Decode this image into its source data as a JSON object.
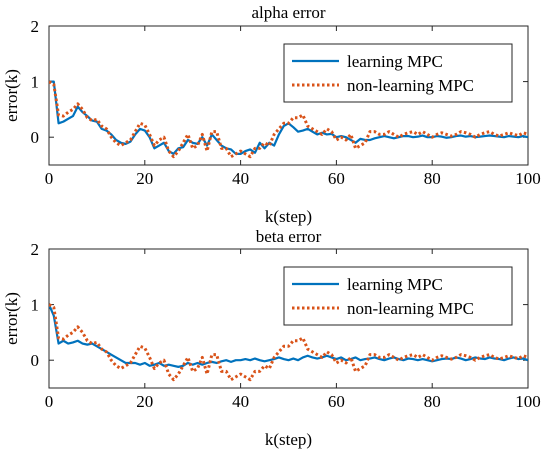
{
  "chart_data": [
    {
      "type": "line",
      "title": "alpha error",
      "xlabel": "k(step)",
      "ylabel": "error(k)",
      "xlim": [
        0,
        100
      ],
      "ylim": [
        -0.5,
        2
      ],
      "xticks": [
        "0",
        "20",
        "40",
        "60",
        "80",
        "100"
      ],
      "yticks": [
        "0",
        "1",
        "2"
      ],
      "grid": false,
      "legend": "top-right",
      "series": [
        {
          "name": "learning MPC",
          "color": "#0072BD",
          "style": "solid",
          "x": [
            0,
            1,
            2,
            3,
            4,
            5,
            6,
            7,
            8,
            9,
            10,
            11,
            12,
            13,
            14,
            15,
            16,
            17,
            18,
            19,
            20,
            21,
            22,
            23,
            24,
            25,
            26,
            27,
            28,
            29,
            30,
            31,
            32,
            33,
            34,
            35,
            36,
            37,
            38,
            39,
            40,
            41,
            42,
            43,
            44,
            45,
            46,
            47,
            48,
            49,
            50,
            51,
            52,
            53,
            54,
            55,
            56,
            57,
            58,
            59,
            60,
            61,
            62,
            63,
            64,
            65,
            66,
            67,
            68,
            69,
            70,
            71,
            72,
            73,
            74,
            75,
            76,
            77,
            78,
            79,
            80,
            81,
            82,
            83,
            84,
            85,
            86,
            87,
            88,
            89,
            90,
            91,
            92,
            93,
            94,
            95,
            96,
            97,
            98,
            99,
            100
          ],
          "y": [
            1.0,
            1.0,
            0.25,
            0.28,
            0.33,
            0.38,
            0.55,
            0.45,
            0.38,
            0.3,
            0.28,
            0.15,
            0.12,
            0.05,
            -0.05,
            -0.1,
            -0.12,
            -0.08,
            0.05,
            0.15,
            0.12,
            0.0,
            -0.2,
            -0.15,
            -0.1,
            -0.25,
            -0.3,
            -0.2,
            -0.18,
            -0.05,
            -0.1,
            -0.12,
            0.0,
            -0.15,
            0.05,
            -0.05,
            -0.15,
            -0.2,
            -0.22,
            -0.3,
            -0.3,
            -0.25,
            -0.22,
            -0.28,
            -0.1,
            -0.2,
            -0.1,
            -0.15,
            0.05,
            0.2,
            0.25,
            0.18,
            0.1,
            0.12,
            0.15,
            0.1,
            0.05,
            0.08,
            0.05,
            0.06,
            0.0,
            0.02,
            0.0,
            -0.05,
            -0.1,
            -0.03,
            -0.05,
            -0.05,
            -0.02,
            0.0,
            0.02,
            0.0,
            -0.02,
            0.0,
            0.02,
            0.02,
            0.0,
            0.01,
            0.03,
            0.0,
            0.0,
            0.02,
            0.01,
            -0.01,
            0.0,
            0.02,
            0.03,
            0.01,
            0.02,
            0.0,
            0.01,
            0.02,
            0.03,
            0.02,
            0.01,
            0.0,
            0.02,
            0.01,
            0.0,
            0.02,
            0.0
          ]
        },
        {
          "name": "non-learning MPC",
          "color": "#D95319",
          "style": "dotted",
          "x": [
            0,
            1,
            2,
            3,
            4,
            5,
            6,
            7,
            8,
            9,
            10,
            11,
            12,
            13,
            14,
            15,
            16,
            17,
            18,
            19,
            20,
            21,
            22,
            23,
            24,
            25,
            26,
            27,
            28,
            29,
            30,
            31,
            32,
            33,
            34,
            35,
            36,
            37,
            38,
            39,
            40,
            41,
            42,
            43,
            44,
            45,
            46,
            47,
            48,
            49,
            50,
            51,
            52,
            53,
            54,
            55,
            56,
            57,
            58,
            59,
            60,
            61,
            62,
            63,
            64,
            65,
            66,
            67,
            68,
            69,
            70,
            71,
            72,
            73,
            74,
            75,
            76,
            77,
            78,
            79,
            80,
            81,
            82,
            83,
            84,
            85,
            86,
            87,
            88,
            89,
            90,
            91,
            92,
            93,
            94,
            95,
            96,
            97,
            98,
            99,
            100
          ],
          "y": [
            1.0,
            0.95,
            0.4,
            0.38,
            0.45,
            0.5,
            0.6,
            0.5,
            0.35,
            0.3,
            0.32,
            0.2,
            0.15,
            0.0,
            -0.1,
            -0.15,
            -0.1,
            -0.05,
            0.1,
            0.25,
            0.22,
            0.05,
            -0.15,
            -0.05,
            0.0,
            -0.25,
            -0.35,
            -0.25,
            -0.1,
            0.05,
            -0.2,
            -0.15,
            0.05,
            -0.25,
            0.1,
            0.1,
            -0.2,
            -0.2,
            -0.35,
            -0.3,
            -0.25,
            -0.3,
            -0.35,
            -0.2,
            -0.2,
            -0.1,
            -0.15,
            0.05,
            0.15,
            0.25,
            0.25,
            0.35,
            0.35,
            0.4,
            0.2,
            0.15,
            0.1,
            0.05,
            0.15,
            0.1,
            -0.05,
            0.0,
            -0.05,
            0.05,
            -0.2,
            -0.15,
            -0.1,
            0.1,
            0.1,
            0.05,
            0.05,
            0.1,
            0.05,
            0.0,
            0.05,
            0.08,
            0.1,
            0.05,
            0.1,
            0.05,
            0.0,
            0.05,
            0.08,
            0.05,
            0.02,
            0.05,
            0.1,
            0.08,
            0.05,
            0.0,
            0.05,
            0.08,
            0.1,
            0.05,
            0.02,
            0.05,
            0.08,
            0.05,
            0.03,
            0.08,
            0.05
          ]
        }
      ]
    },
    {
      "type": "line",
      "title": "beta error",
      "xlabel": "k(step)",
      "ylabel": "error(k)",
      "xlim": [
        0,
        100
      ],
      "ylim": [
        -0.5,
        2
      ],
      "xticks": [
        "0",
        "20",
        "40",
        "60",
        "80",
        "100"
      ],
      "yticks": [
        "0",
        "1",
        "2"
      ],
      "grid": false,
      "legend": "top-right",
      "series": [
        {
          "name": "learning MPC",
          "color": "#0072BD",
          "style": "solid",
          "x": [
            0,
            1,
            2,
            3,
            4,
            5,
            6,
            7,
            8,
            9,
            10,
            11,
            12,
            13,
            14,
            15,
            16,
            17,
            18,
            19,
            20,
            21,
            22,
            23,
            24,
            25,
            26,
            27,
            28,
            29,
            30,
            31,
            32,
            33,
            34,
            35,
            36,
            37,
            38,
            39,
            40,
            41,
            42,
            43,
            44,
            45,
            46,
            47,
            48,
            49,
            50,
            51,
            52,
            53,
            54,
            55,
            56,
            57,
            58,
            59,
            60,
            61,
            62,
            63,
            64,
            65,
            66,
            67,
            68,
            69,
            70,
            71,
            72,
            73,
            74,
            75,
            76,
            77,
            78,
            79,
            80,
            81,
            82,
            83,
            84,
            85,
            86,
            87,
            88,
            89,
            90,
            91,
            92,
            93,
            94,
            95,
            96,
            97,
            98,
            99,
            100
          ],
          "y": [
            1.0,
            0.8,
            0.3,
            0.35,
            0.3,
            0.32,
            0.35,
            0.3,
            0.28,
            0.3,
            0.25,
            0.2,
            0.15,
            0.1,
            0.05,
            0.0,
            -0.05,
            -0.05,
            -0.05,
            -0.08,
            -0.05,
            -0.1,
            -0.08,
            -0.05,
            -0.1,
            -0.08,
            -0.1,
            -0.12,
            -0.1,
            -0.05,
            -0.08,
            -0.05,
            -0.08,
            -0.05,
            -0.03,
            -0.05,
            -0.02,
            0.0,
            -0.03,
            0.0,
            0.0,
            0.02,
            0.0,
            0.03,
            0.0,
            -0.02,
            0.0,
            0.02,
            0.05,
            0.02,
            0.0,
            0.03,
            0.0,
            0.05,
            0.08,
            0.05,
            0.03,
            0.05,
            0.08,
            0.05,
            0.02,
            0.05,
            0.0,
            0.02,
            0.05,
            0.0,
            0.02,
            0.03,
            0.05,
            0.02,
            0.0,
            0.03,
            0.05,
            0.02,
            0.0,
            0.03,
            0.02,
            0.0,
            0.02,
            0.0,
            -0.02,
            0.0,
            0.02,
            0.03,
            0.02,
            0.05,
            0.03,
            0.0,
            0.02,
            0.05,
            0.03,
            0.02,
            0.05,
            0.03,
            0.02,
            0.0,
            0.03,
            0.05,
            0.02,
            0.03,
            0.0
          ]
        },
        {
          "name": "non-learning MPC",
          "color": "#D95319",
          "style": "dotted",
          "x": [
            0,
            1,
            2,
            3,
            4,
            5,
            6,
            7,
            8,
            9,
            10,
            11,
            12,
            13,
            14,
            15,
            16,
            17,
            18,
            19,
            20,
            21,
            22,
            23,
            24,
            25,
            26,
            27,
            28,
            29,
            30,
            31,
            32,
            33,
            34,
            35,
            36,
            37,
            38,
            39,
            40,
            41,
            42,
            43,
            44,
            45,
            46,
            47,
            48,
            49,
            50,
            51,
            52,
            53,
            54,
            55,
            56,
            57,
            58,
            59,
            60,
            61,
            62,
            63,
            64,
            65,
            66,
            67,
            68,
            69,
            70,
            71,
            72,
            73,
            74,
            75,
            76,
            77,
            78,
            79,
            80,
            81,
            82,
            83,
            84,
            85,
            86,
            87,
            88,
            89,
            90,
            91,
            92,
            93,
            94,
            95,
            96,
            97,
            98,
            99,
            100
          ],
          "y": [
            1.0,
            0.95,
            0.4,
            0.38,
            0.45,
            0.5,
            0.6,
            0.5,
            0.35,
            0.3,
            0.32,
            0.2,
            0.15,
            0.0,
            -0.1,
            -0.15,
            -0.1,
            -0.05,
            0.1,
            0.25,
            0.22,
            0.05,
            -0.15,
            -0.05,
            0.0,
            -0.25,
            -0.35,
            -0.25,
            -0.1,
            0.05,
            -0.2,
            -0.15,
            0.05,
            -0.25,
            0.1,
            0.1,
            -0.2,
            -0.2,
            -0.35,
            -0.3,
            -0.25,
            -0.3,
            -0.35,
            -0.2,
            -0.2,
            -0.1,
            -0.15,
            0.05,
            0.15,
            0.25,
            0.25,
            0.35,
            0.35,
            0.4,
            0.2,
            0.15,
            0.1,
            0.05,
            0.15,
            0.1,
            -0.05,
            0.0,
            -0.05,
            0.05,
            -0.2,
            -0.15,
            -0.1,
            0.1,
            0.1,
            0.05,
            0.05,
            0.1,
            0.05,
            0.0,
            0.05,
            0.08,
            0.1,
            0.05,
            0.1,
            0.05,
            0.0,
            0.05,
            0.08,
            0.05,
            0.02,
            0.05,
            0.1,
            0.08,
            0.05,
            0.0,
            0.05,
            0.08,
            0.1,
            0.05,
            0.02,
            0.05,
            0.08,
            0.05,
            0.03,
            0.08,
            0.05
          ]
        }
      ]
    }
  ]
}
